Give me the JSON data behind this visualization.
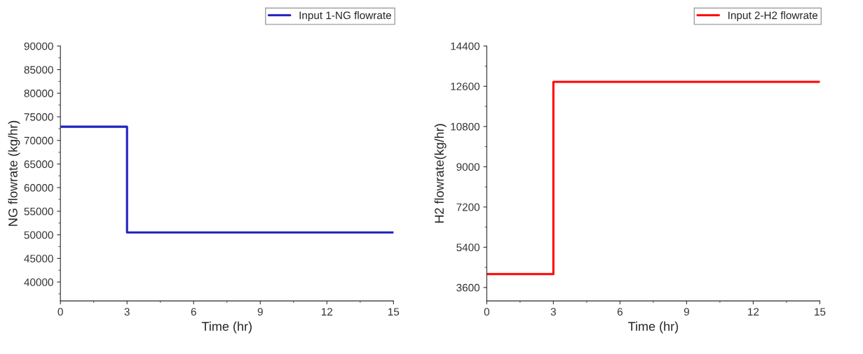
{
  "chart_data": [
    {
      "type": "step",
      "xlabel": "Time (hr)",
      "ylabel": "NG flowrate (kg/hr)",
      "x": [
        0,
        3,
        15
      ],
      "xlim": [
        0,
        15
      ],
      "xticks": [
        0,
        3,
        6,
        9,
        12,
        15
      ],
      "ylim": [
        36000,
        90000
      ],
      "yticks": [
        40000,
        45000,
        50000,
        55000,
        60000,
        65000,
        70000,
        75000,
        80000,
        85000,
        90000
      ],
      "legend": "top right",
      "series": [
        {
          "name": "Input 1-NG flowrate",
          "color": "#1f1fbf",
          "values": [
            72900,
            50500,
            50500
          ]
        }
      ]
    },
    {
      "type": "step",
      "xlabel": "Time (hr)",
      "ylabel": "H2 flowrate(kg/hr)",
      "x": [
        0,
        3,
        15
      ],
      "xlim": [
        0,
        15
      ],
      "xticks": [
        0,
        3,
        6,
        9,
        12,
        15
      ],
      "ylim": [
        3000,
        14400
      ],
      "yticks": [
        3600,
        5400,
        7200,
        9000,
        10800,
        12600,
        14400
      ],
      "legend": "top right",
      "series": [
        {
          "name": "Input 2-H2 flowrate",
          "color": "#ff0000",
          "values": [
            4200,
            12800,
            12800
          ]
        }
      ]
    }
  ]
}
